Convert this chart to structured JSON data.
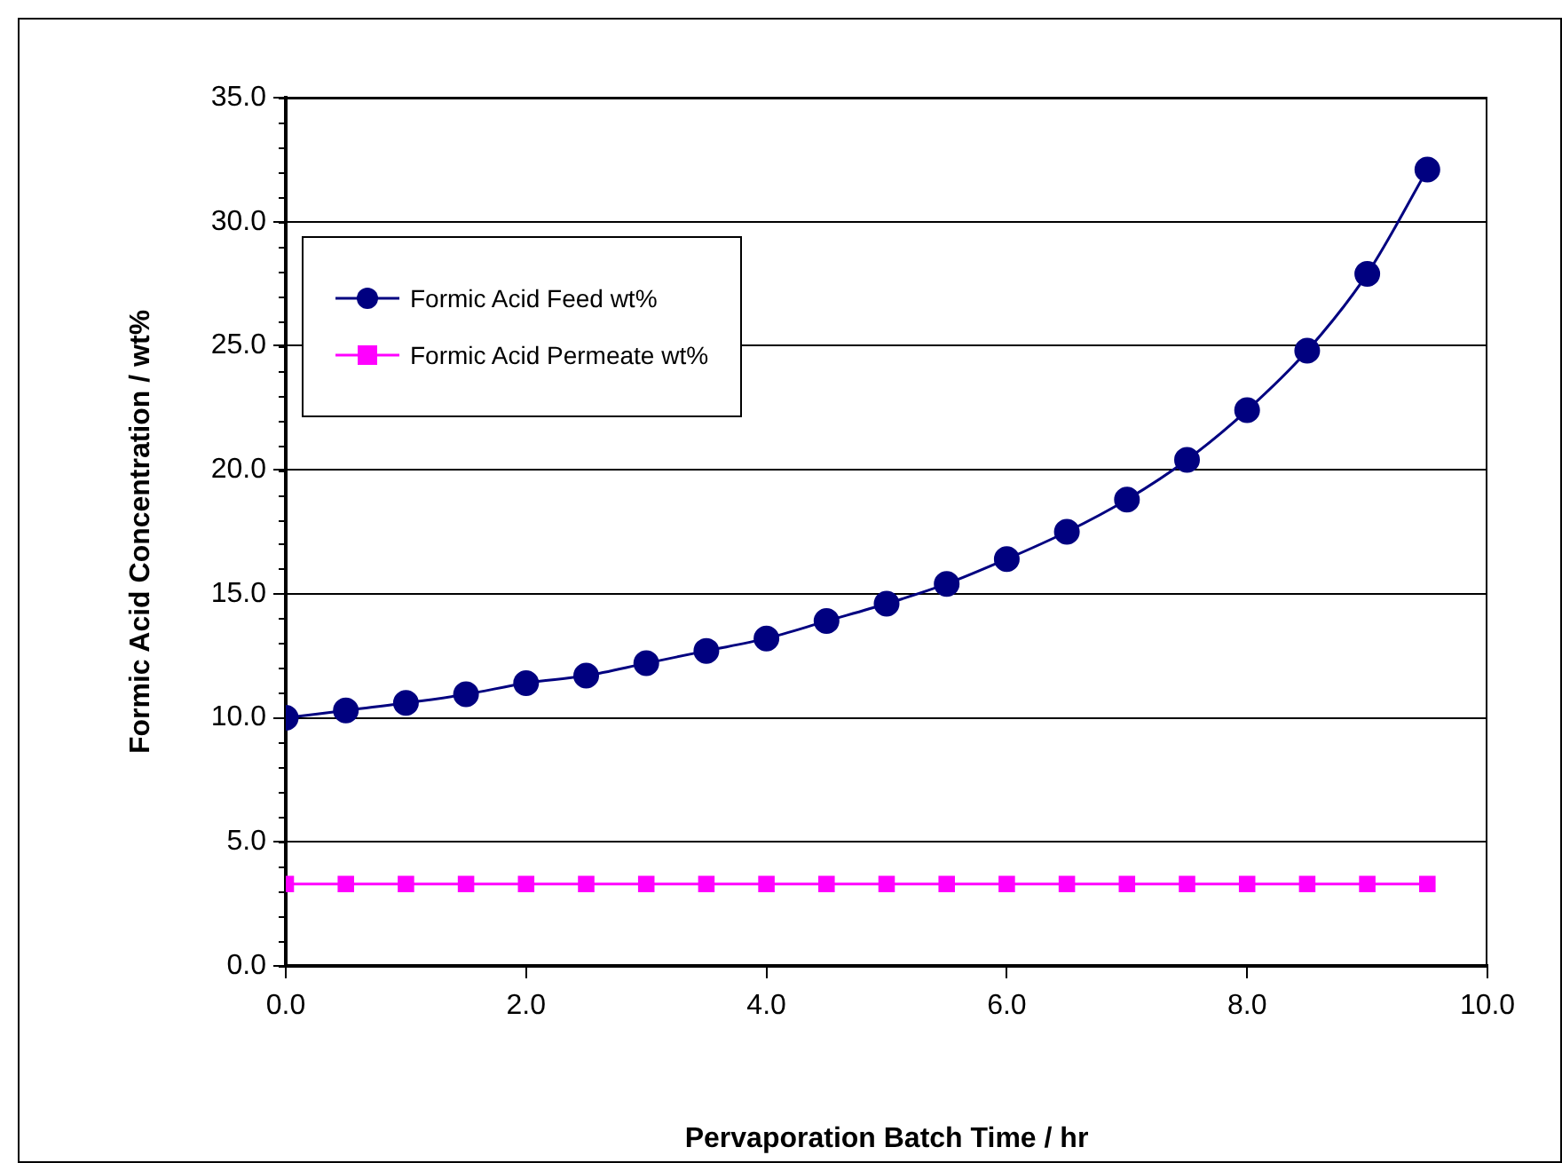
{
  "chart_data": {
    "type": "line",
    "xlabel": "Pervaporation Batch Time / hr",
    "ylabel": "Formic Acid Concentration / wt%",
    "x": [
      0,
      0.5,
      1,
      1.5,
      2,
      2.5,
      3,
      3.5,
      4,
      4.5,
      5,
      5.5,
      6,
      6.5,
      7,
      7.5,
      8,
      8.5,
      9,
      9.5
    ],
    "series": [
      {
        "name": "Formic Acid Feed wt%",
        "color": "#000080",
        "marker": "circle",
        "values": [
          10.0,
          10.3,
          10.6,
          10.95,
          11.4,
          11.7,
          12.2,
          12.7,
          13.2,
          13.9,
          14.6,
          15.4,
          16.4,
          17.5,
          18.8,
          20.4,
          22.4,
          24.8,
          27.9,
          32.1
        ]
      },
      {
        "name": "Formic Acid Permeate wt%",
        "color": "#ff00ff",
        "marker": "square",
        "values": [
          3.3,
          3.3,
          3.3,
          3.3,
          3.3,
          3.3,
          3.3,
          3.3,
          3.3,
          3.3,
          3.3,
          3.3,
          3.3,
          3.3,
          3.3,
          3.3,
          3.3,
          3.3,
          3.3,
          3.3
        ]
      }
    ],
    "xlim": [
      0,
      10
    ],
    "xticks": [
      {
        "value": 0,
        "label": "0.0"
      },
      {
        "value": 2,
        "label": "2.0"
      },
      {
        "value": 4,
        "label": "4.0"
      },
      {
        "value": 6,
        "label": "6.0"
      },
      {
        "value": 8,
        "label": "8.0"
      },
      {
        "value": 10,
        "label": "10.0"
      }
    ],
    "ylim": [
      0,
      35
    ],
    "yticks": [
      {
        "value": 0,
        "label": "0.0"
      },
      {
        "value": 5,
        "label": "5.0"
      },
      {
        "value": 10,
        "label": "10.0"
      },
      {
        "value": 15,
        "label": "15.0"
      },
      {
        "value": 20,
        "label": "20.0"
      },
      {
        "value": 25,
        "label": "25.0"
      },
      {
        "value": 30,
        "label": "30.0"
      },
      {
        "value": 35,
        "label": "35.0"
      }
    ],
    "grid": "y",
    "legend": "top left"
  }
}
